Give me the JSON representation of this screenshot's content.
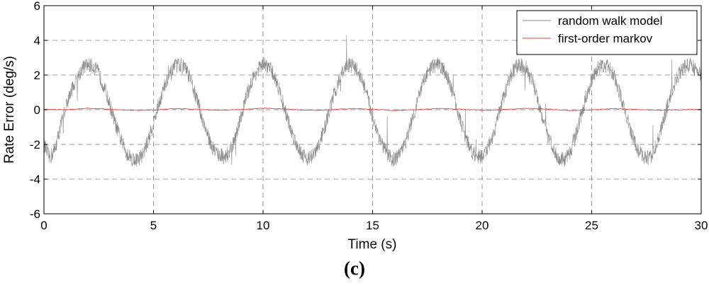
{
  "caption": "(c)",
  "chart_data": {
    "type": "line",
    "title": "",
    "xlabel": "Time (s)",
    "ylabel": "Rate Error (deg/s)",
    "xlim": [
      0,
      30
    ],
    "ylim": [
      -6,
      6
    ],
    "xticks": [
      0,
      5,
      10,
      15,
      20,
      25,
      30
    ],
    "yticks": [
      -6,
      -4,
      -2,
      0,
      2,
      4,
      6
    ],
    "grid": true,
    "legend_position": "top-right",
    "series": [
      {
        "name": "random walk model",
        "color": "#8c8c8c",
        "x": [
          0,
          0.25,
          0.5,
          0.75,
          1.0,
          1.25,
          1.5,
          1.75,
          2.0,
          2.25,
          2.5,
          2.75,
          3.0,
          3.25,
          3.5,
          3.75,
          4.0,
          4.25,
          4.5,
          4.75,
          5.0,
          5.25,
          5.5,
          5.75,
          6.0,
          6.25,
          6.5,
          6.75,
          7.0,
          7.25,
          7.5,
          7.75,
          8.0,
          8.25,
          8.5,
          8.75,
          9.0,
          9.25,
          9.5,
          9.75,
          10.0,
          10.25,
          10.5,
          10.75,
          11.0,
          11.25,
          11.5,
          11.75,
          12.0,
          12.25,
          12.5,
          12.75,
          13.0,
          13.25,
          13.5,
          13.75,
          14.0,
          14.25,
          14.5,
          14.75,
          15.0,
          15.25,
          15.5,
          15.75,
          16.0,
          16.25,
          16.5,
          16.75,
          17.0,
          17.25,
          17.5,
          17.75,
          18.0,
          18.25,
          18.5,
          18.75,
          19.0,
          19.25,
          19.5,
          19.75,
          20.0,
          20.25,
          20.5,
          20.75,
          21.0,
          21.25,
          21.5,
          21.75,
          22.0,
          22.25,
          22.5,
          22.75,
          23.0,
          23.25,
          23.5,
          23.75,
          24.0,
          24.25,
          24.5,
          24.75,
          25.0,
          25.25,
          25.5,
          25.75,
          26.0,
          26.25,
          26.5,
          26.75,
          27.0,
          27.25,
          27.5,
          27.75,
          28.0,
          28.25,
          28.5,
          28.75,
          29.0,
          29.25,
          29.5,
          29.75,
          30.0
        ],
        "y": [
          -2.0,
          -2.8,
          -2.3,
          -1.0,
          0.2,
          1.1,
          1.8,
          2.4,
          2.6,
          2.5,
          2.1,
          1.3,
          0.3,
          -0.8,
          -1.7,
          -2.4,
          -2.8,
          -2.9,
          -2.6,
          -1.8,
          -0.8,
          0.4,
          1.3,
          2.0,
          2.5,
          2.6,
          2.3,
          1.5,
          0.5,
          -0.6,
          -1.6,
          -2.3,
          -2.6,
          -2.7,
          -2.4,
          -1.6,
          -0.4,
          0.8,
          1.7,
          2.3,
          2.6,
          2.5,
          2.0,
          1.1,
          0.0,
          -1.1,
          -1.9,
          -2.5,
          -2.8,
          -2.7,
          -2.2,
          -1.3,
          -0.2,
          0.9,
          1.8,
          2.4,
          2.6,
          2.4,
          1.8,
          0.8,
          -0.4,
          -1.4,
          -2.2,
          -2.7,
          -2.9,
          -2.6,
          -1.9,
          -0.8,
          0.3,
          1.3,
          2.1,
          2.5,
          2.6,
          2.3,
          1.6,
          0.6,
          -0.6,
          -1.6,
          -2.3,
          -2.7,
          -2.7,
          -2.3,
          -1.5,
          -0.3,
          0.8,
          1.8,
          2.4,
          2.6,
          2.4,
          1.8,
          0.8,
          -0.4,
          -1.5,
          -2.3,
          -2.8,
          -2.9,
          -2.5,
          -1.6,
          -0.4,
          0.7,
          1.7,
          2.3,
          2.6,
          2.5,
          2.0,
          1.1,
          0.0,
          -1.1,
          -2.0,
          -2.6,
          -2.8,
          -2.6,
          -1.9,
          -0.8,
          0.4,
          1.4,
          2.1,
          2.5,
          2.6,
          2.3,
          2.0
        ]
      },
      {
        "name": "first-order markov",
        "color": "#e8413c",
        "x": [
          0,
          1,
          2,
          3,
          4,
          5,
          6,
          7,
          8,
          9,
          10,
          11,
          12,
          13,
          14,
          15,
          16,
          17,
          18,
          19,
          20,
          21,
          22,
          23,
          24,
          25,
          26,
          27,
          28,
          29,
          30
        ],
        "y": [
          0.02,
          0.0,
          0.08,
          0.03,
          -0.04,
          -0.02,
          0.07,
          0.02,
          -0.03,
          0.01,
          0.09,
          0.04,
          -0.03,
          -0.01,
          0.06,
          0.02,
          -0.04,
          0.0,
          0.07,
          0.03,
          -0.03,
          0.01,
          0.08,
          0.03,
          -0.04,
          -0.01,
          0.06,
          0.02,
          -0.03,
          0.0,
          0.02
        ]
      }
    ]
  }
}
